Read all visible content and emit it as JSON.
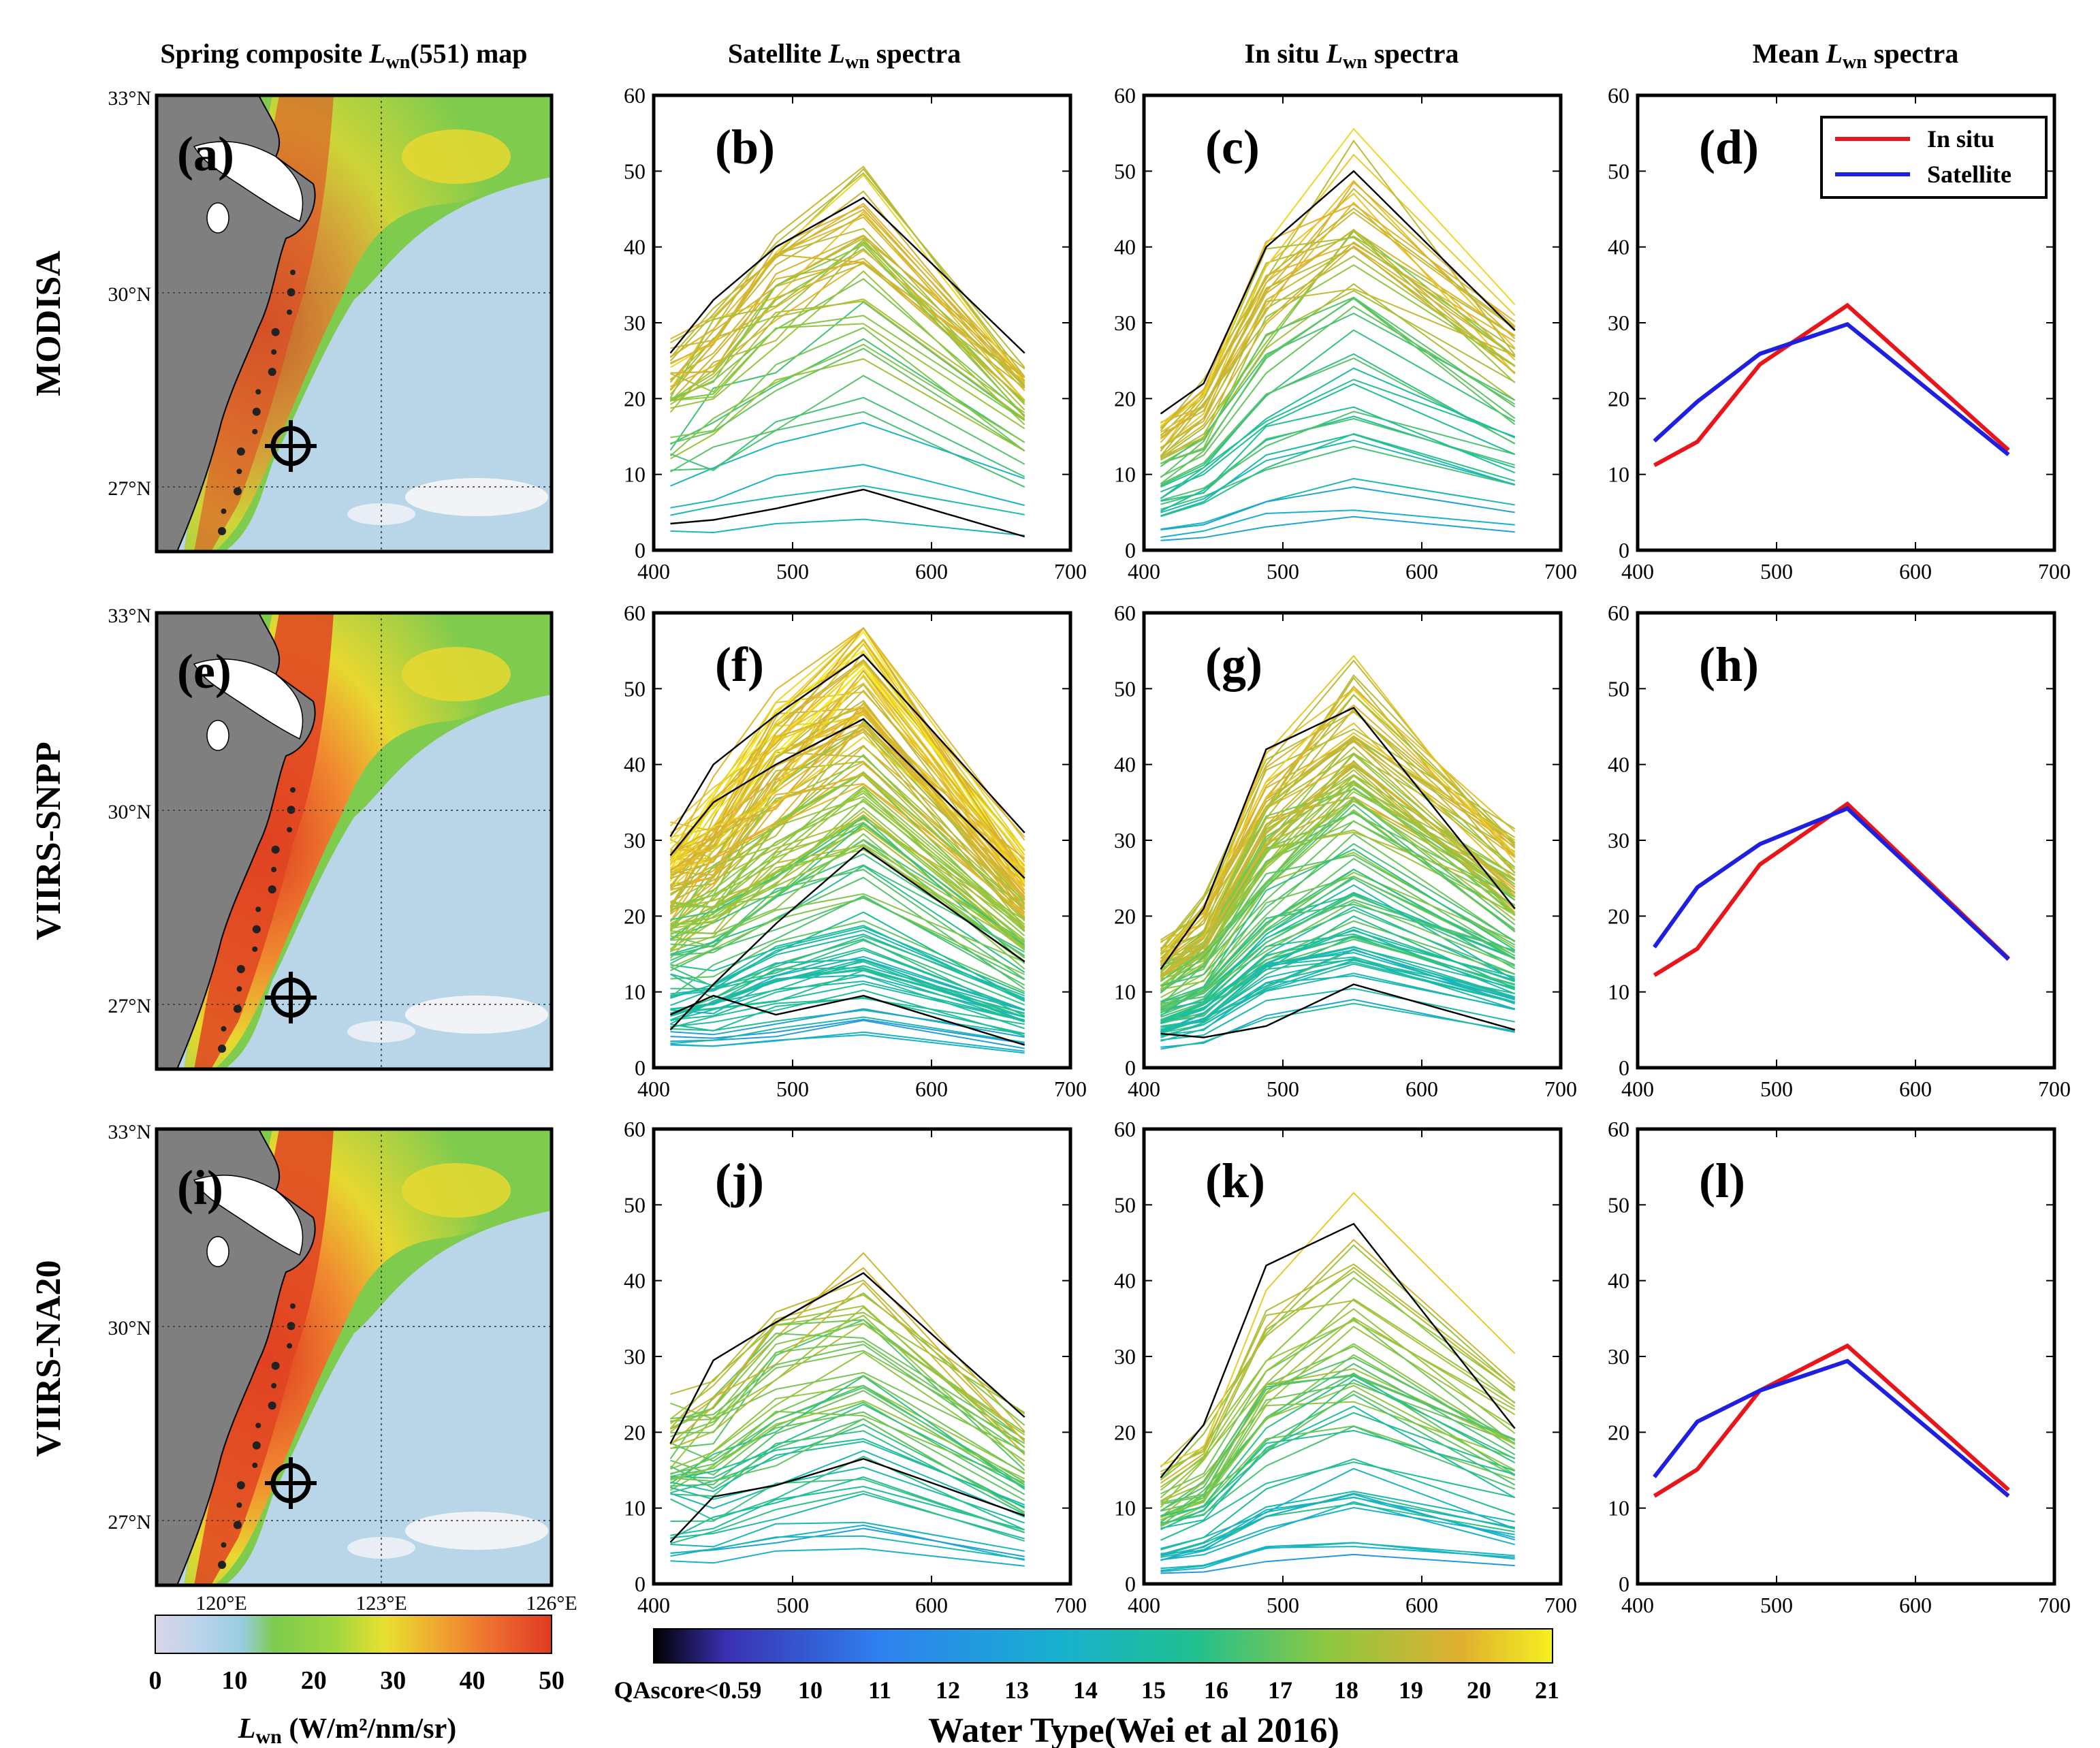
{
  "columns": {
    "map": {
      "prefix": "Spring composite ",
      "var": "L",
      "sub": "wn",
      "suffix": "(551) map"
    },
    "satellite": {
      "prefix": "Satellite ",
      "var": "L",
      "sub": "wn",
      "suffix": " spectra"
    },
    "insitu": {
      "prefix": "In situ ",
      "var": "L",
      "sub": "wn",
      "suffix": " spectra"
    },
    "mean": {
      "prefix": "Mean ",
      "var": "L",
      "sub": "wn",
      "suffix": " spectra"
    }
  },
  "rows": [
    "MODISA",
    "VIIRS-SNPP",
    "VIIRS-NA20"
  ],
  "map_axes": {
    "lat_labels": [
      "33°N",
      "30°N",
      "27°N"
    ],
    "lon_labels": [
      "120°E",
      "123°E",
      "126°E"
    ]
  },
  "map_colorbar": {
    "ticks": [
      "0",
      "10",
      "20",
      "30",
      "40",
      "50"
    ],
    "label_var": "L",
    "label_sub": "wn",
    "label_unit": " (W/m²/nm/sr)",
    "colors": [
      "#d8d8e8",
      "#a8d0e8",
      "#7ec850",
      "#e8e030",
      "#f0a030",
      "#e04020"
    ]
  },
  "watertype_colorbar": {
    "tick_labels": [
      "QAscore<0.59",
      "10",
      "11",
      "12",
      "13",
      "14",
      "15",
      "16",
      "17",
      "18",
      "19",
      "20",
      "21"
    ],
    "title": "Water Type(Wei et al 2016)",
    "colors": [
      "#000000",
      "#3a2fb0",
      "#2f80f0",
      "#17b0d0",
      "#20c090",
      "#8ec840",
      "#e0b030",
      "#f5f020"
    ]
  },
  "panel_labels": [
    "(a)",
    "(b)",
    "(c)",
    "(d)",
    "(e)",
    "(f)",
    "(g)",
    "(h)",
    "(i)",
    "(j)",
    "(k)",
    "(l)"
  ],
  "legend": {
    "insitu": "In situ",
    "satellite": "Satellite",
    "insitu_color": "#e8151b",
    "satellite_color": "#1f1fe0"
  },
  "chart_data": {
    "type": "line",
    "x": [
      412,
      443,
      488,
      551,
      667
    ],
    "xlim": [
      400,
      700
    ],
    "ylim": [
      0,
      60
    ],
    "xticks": [
      "400",
      "500",
      "600",
      "700"
    ],
    "yticks": [
      "0",
      "10",
      "20",
      "30",
      "40",
      "50",
      "60"
    ],
    "mean_spectra": [
      {
        "row": "MODISA",
        "insitu": [
          11.2,
          14.3,
          24.5,
          32.3,
          13.2
        ],
        "satellite": [
          14.4,
          19.6,
          25.9,
          29.8,
          12.6
        ]
      },
      {
        "row": "VIIRS-SNPP",
        "insitu": [
          12.2,
          15.7,
          26.8,
          34.8,
          14.4
        ],
        "satellite": [
          15.9,
          23.8,
          29.5,
          34.2,
          14.3
        ]
      },
      {
        "row": "VIIRS-NA20",
        "insitu": [
          11.6,
          15.1,
          25.5,
          31.4,
          12.4
        ],
        "satellite": [
          14.1,
          21.4,
          25.5,
          29.4,
          11.6
        ]
      }
    ],
    "spectra_panels": [
      {
        "panel": "(b)",
        "row": "MODISA",
        "kind": "satellite",
        "count": 45,
        "black_spectra": [
          [
            26,
            33,
            40,
            46.5,
            26
          ],
          [
            3.5,
            4,
            5.5,
            8,
            1.8
          ]
        ]
      },
      {
        "panel": "(c)",
        "row": "MODISA",
        "kind": "insitu",
        "count": 50,
        "black_spectra": [
          [
            18,
            22,
            40,
            50,
            29
          ]
        ]
      },
      {
        "panel": "(f)",
        "row": "VIIRS-SNPP",
        "kind": "satellite",
        "count": 140,
        "black_spectra": [
          [
            30.5,
            40,
            46.5,
            54.5,
            31
          ],
          [
            28,
            35,
            40,
            46,
            25
          ],
          [
            7,
            9.5,
            7,
            9.5,
            3
          ],
          [
            5,
            11,
            19,
            29,
            14
          ]
        ]
      },
      {
        "panel": "(g)",
        "row": "VIIRS-SNPP",
        "kind": "insitu",
        "count": 110,
        "black_spectra": [
          [
            13,
            21,
            42,
            47.5,
            21
          ],
          [
            4.5,
            4,
            5.5,
            11,
            5
          ]
        ]
      },
      {
        "panel": "(j)",
        "row": "VIIRS-NA20",
        "kind": "satellite",
        "count": 50,
        "black_spectra": [
          [
            18.5,
            29.5,
            34.5,
            41,
            22
          ],
          [
            5.5,
            11.5,
            13,
            16.5,
            9
          ]
        ]
      },
      {
        "panel": "(k)",
        "row": "VIIRS-NA20",
        "kind": "insitu",
        "count": 50,
        "black_spectra": [
          [
            14,
            21,
            42,
            47.5,
            20.5
          ]
        ]
      }
    ]
  }
}
